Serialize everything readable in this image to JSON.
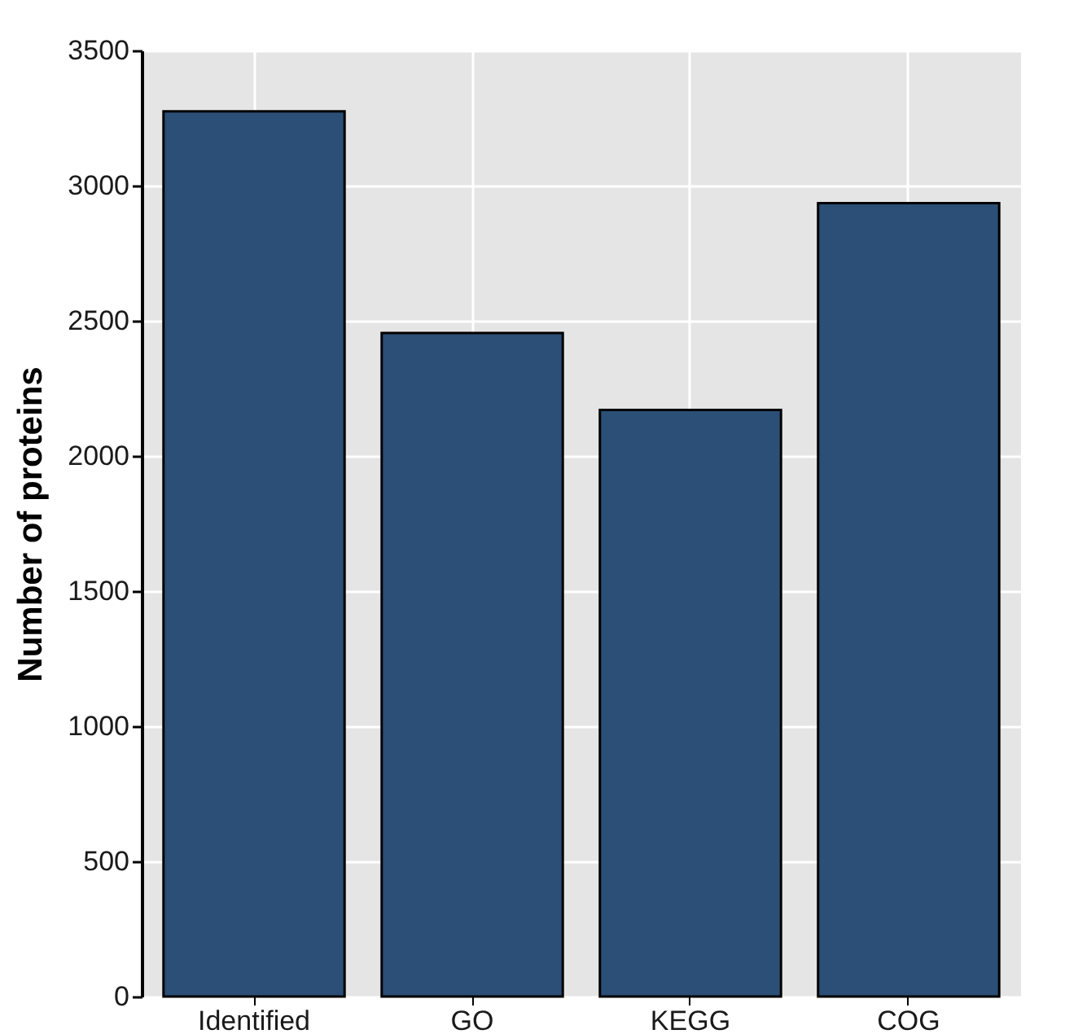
{
  "chart_data": {
    "type": "bar",
    "ylabel": "Number of proteins",
    "categories": [
      "Identified",
      "GO",
      "KEGG",
      "COG"
    ],
    "values": [
      3275,
      2455,
      2170,
      2935
    ],
    "color": "#2b4f76",
    "ylim": [
      0,
      3500
    ],
    "yticks": [
      0,
      500,
      1000,
      1500,
      2000,
      2500,
      3000,
      3500
    ],
    "grid": true
  }
}
